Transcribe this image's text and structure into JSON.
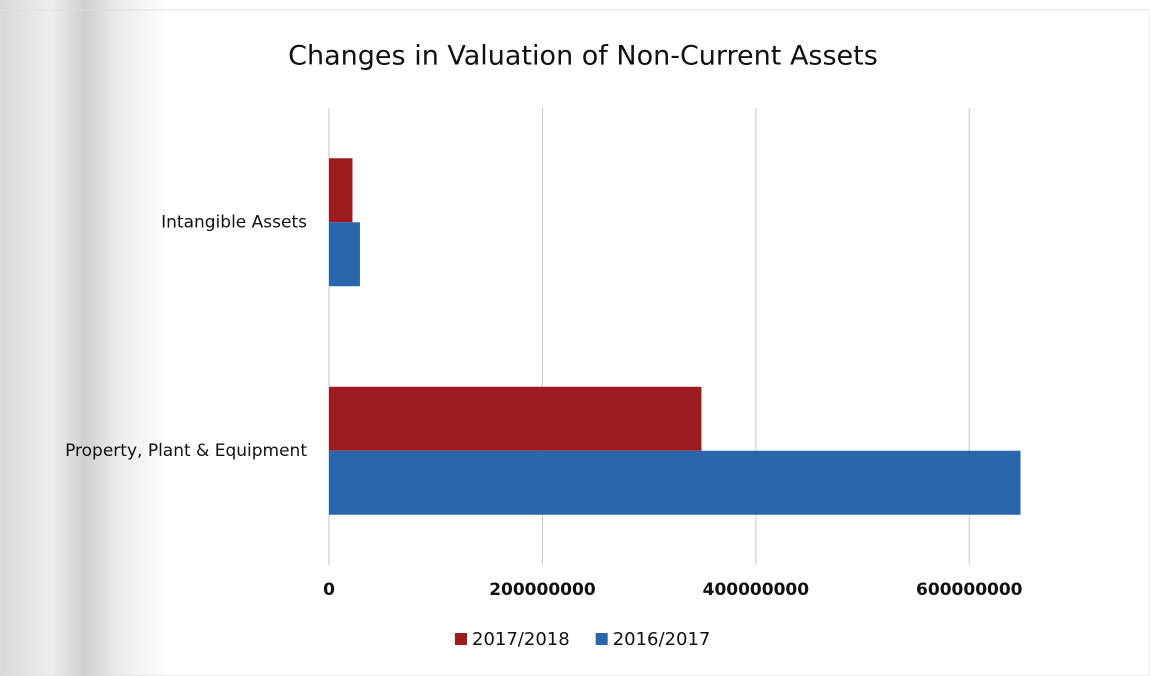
{
  "chart_data": {
    "type": "hbar",
    "title": "Changes in Valuation of Non-Current Assets",
    "categories": [
      "Property, Plant & Equipment",
      "Intangible Assets"
    ],
    "series": [
      {
        "name": "2017/2018",
        "color": "#9e1b20",
        "values": [
          349000000,
          22000000
        ]
      },
      {
        "name": "2016/2017",
        "color": "#2a67aa",
        "values": [
          648000000,
          29000000
        ]
      }
    ],
    "xlim": [
      0,
      700000000
    ],
    "xticks": [
      0,
      200000000,
      400000000,
      600000000
    ],
    "grid": true,
    "legend": "bottom"
  }
}
